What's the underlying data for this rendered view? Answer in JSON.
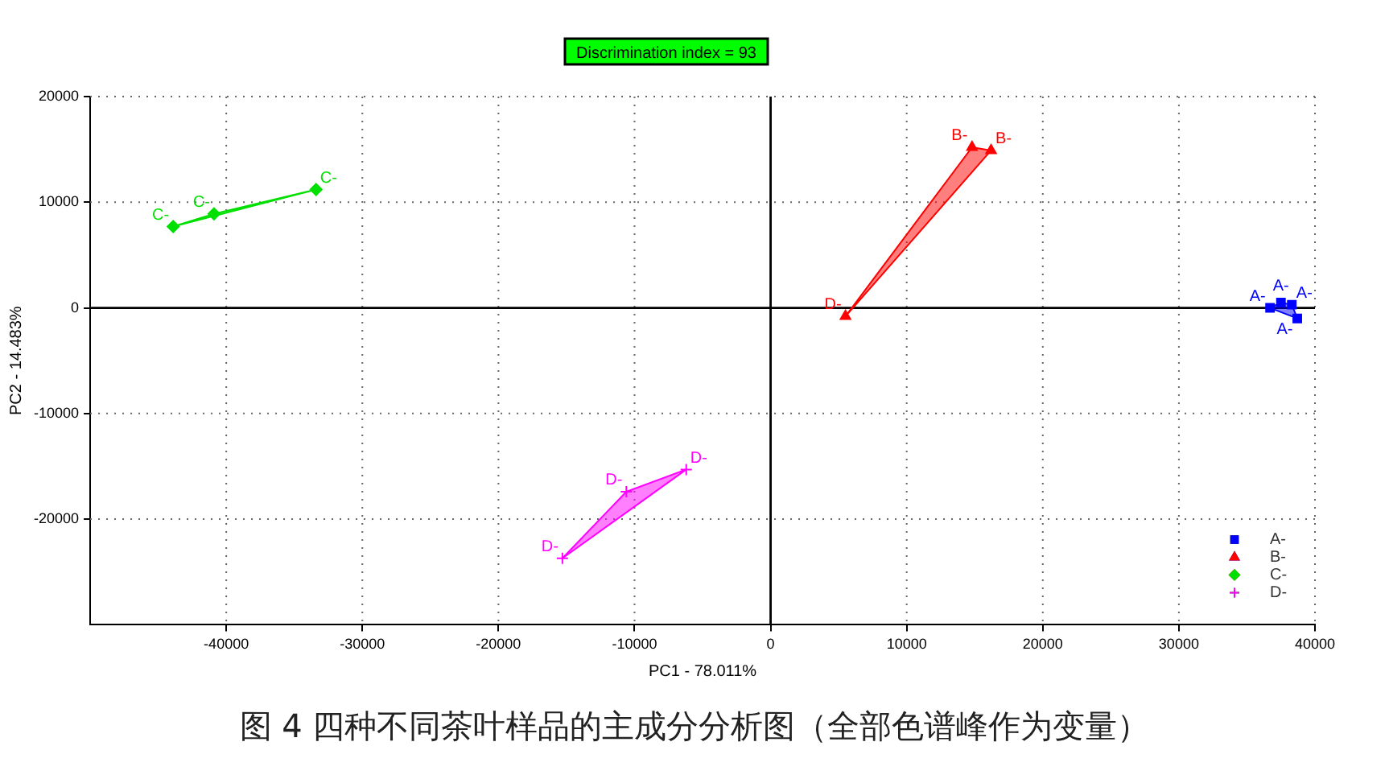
{
  "chart_data": {
    "type": "scatter",
    "title": "Discrimination index = 93",
    "xlabel": "PC1 - 78.011%",
    "ylabel": "PC2 - 14.483%",
    "xlim": [
      -50000,
      40000
    ],
    "xticks": [
      -40000,
      -30000,
      -20000,
      -10000,
      0,
      10000,
      20000,
      30000,
      40000
    ],
    "ylim": [
      -30000,
      20000
    ],
    "yticks": [
      -20000,
      -10000,
      0,
      10000,
      20000
    ],
    "grid": true,
    "legend": "bottom right",
    "series": [
      {
        "name": "A-",
        "color": "#0000ff",
        "marker": "square",
        "x": [
          36700,
          37500,
          38300,
          38700
        ],
        "values": [
          0,
          500,
          300,
          -1000
        ]
      },
      {
        "name": "B-",
        "color": "#ff0000",
        "marker": "triangle",
        "x": [
          14800,
          16200,
          5500
        ],
        "values": [
          15200,
          14900,
          -800
        ]
      },
      {
        "name": "C-",
        "color": "#00e000",
        "marker": "diamond",
        "x": [
          -43900,
          -40900,
          -33400
        ],
        "values": [
          7700,
          8900,
          11200
        ]
      },
      {
        "name": "D-",
        "color": "#ff00ff",
        "marker": "cross",
        "x": [
          -15300,
          -10600,
          -6200
        ],
        "values": [
          -23700,
          -17400,
          -15300
        ]
      }
    ],
    "annotations": [
      {
        "text": "A-",
        "x": 36700,
        "y": 0
      },
      {
        "text": "A-",
        "x": 37500,
        "y": 500
      },
      {
        "text": "A-",
        "x": 38300,
        "y": 300
      },
      {
        "text": "A-",
        "x": 38700,
        "y": -1000
      },
      {
        "text": "B-",
        "x": 14800,
        "y": 15200
      },
      {
        "text": "B-",
        "x": 16200,
        "y": 14900
      },
      {
        "text": "D-",
        "x": 5500,
        "y": -800
      },
      {
        "text": "C-",
        "x": -43900,
        "y": 7700
      },
      {
        "text": "C-",
        "x": -40900,
        "y": 8900
      },
      {
        "text": "C-",
        "x": -33400,
        "y": 11200
      },
      {
        "text": "D-",
        "x": -15300,
        "y": -23700
      },
      {
        "text": "D-",
        "x": -10600,
        "y": -17400
      },
      {
        "text": "D-",
        "x": -6200,
        "y": -15300
      },
      "图 4 四种不同茶叶样品的主成分分析图（全部色谱峰作为变量）"
    ]
  }
}
